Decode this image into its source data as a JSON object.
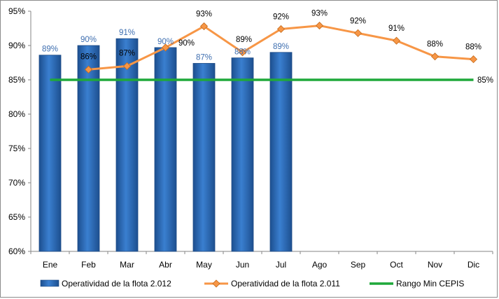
{
  "chart_data": {
    "type": "bar",
    "categories": [
      "Ene",
      "Feb",
      "Mar",
      "Abr",
      "May",
      "Jun",
      "Jul",
      "Ago",
      "Sep",
      "Oct",
      "Nov",
      "Dic"
    ],
    "ylim": [
      0.6,
      0.95
    ],
    "yticks": [
      "60%",
      "65%",
      "70%",
      "75%",
      "80%",
      "85%",
      "90%",
      "95%"
    ],
    "grid": false,
    "legend_position": "bottom",
    "series": [
      {
        "name": "Operatividad de la flota 2.012",
        "kind": "bar",
        "color": "#2e6fbf",
        "values": [
          0.886,
          0.9,
          0.91,
          0.897,
          0.874,
          0.882,
          0.89,
          null,
          null,
          null,
          null,
          null
        ],
        "labels": [
          "89%",
          "90%",
          "91%",
          "90%",
          "87%",
          "88%",
          "89%",
          null,
          null,
          null,
          null,
          null
        ]
      },
      {
        "name": "Operatividad de la flota 2.011",
        "kind": "line",
        "color": "#f79646",
        "values": [
          null,
          0.865,
          0.87,
          0.897,
          0.928,
          0.89,
          0.924,
          0.929,
          0.918,
          0.907,
          0.884,
          0.88
        ],
        "labels": [
          null,
          "86%",
          "87%",
          "90%",
          "93%",
          "89%",
          "92%",
          "93%",
          "92%",
          "91%",
          "88%",
          "88%"
        ]
      },
      {
        "name": "Rango Min CEPIS",
        "kind": "reference",
        "color": "#1fa83a",
        "value": 0.85,
        "label": "85%"
      }
    ]
  }
}
